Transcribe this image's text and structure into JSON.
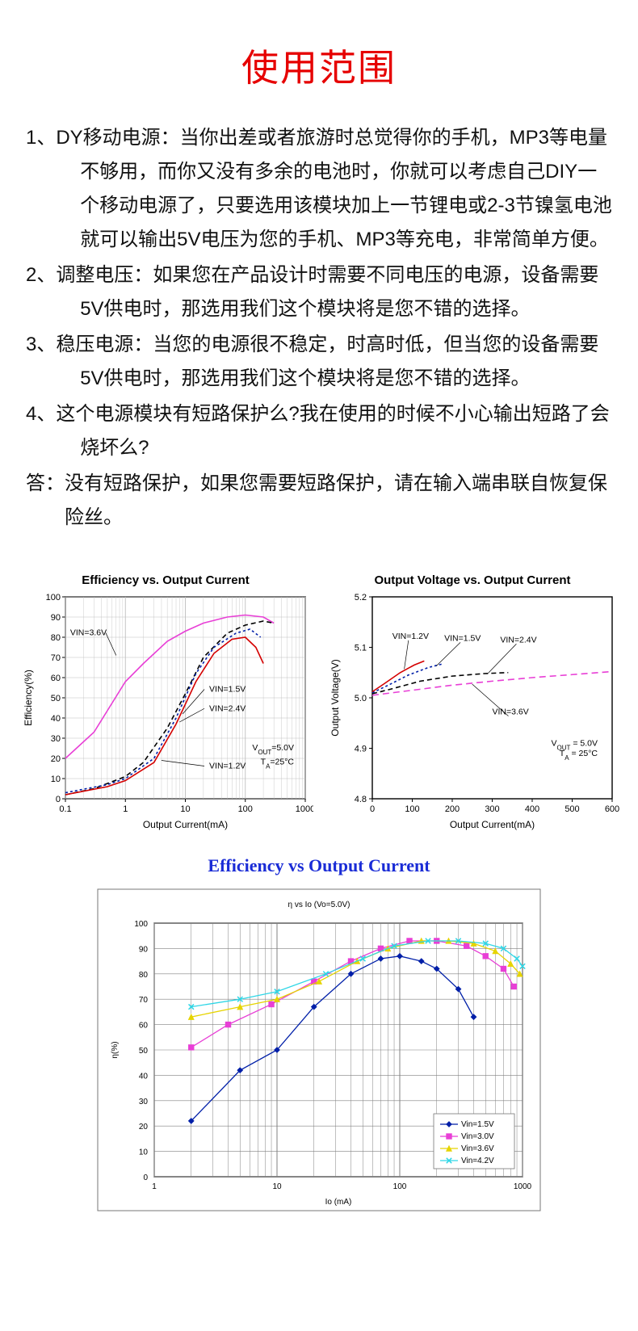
{
  "title": "使用范围",
  "paragraphs": {
    "p1": "1、DY移动电源：当你出差或者旅游时总觉得你的手机，MP3等电量不够用，而你又没有多余的电池时，你就可以考虑自己DIY一个移动电源了，只要选用该模块加上一节锂电或2-3节镍氢电池就可以输出5V电压为您的手机、MP3等充电，非常简单方便。",
    "p2": "2、调整电压：如果您在产品设计时需要不同电压的电源，设备需要5V供电时，那选用我们这个模块将是您不错的选择。",
    "p3": "3、稳压电源：当您的电源很不稳定，时高时低，但当您的设备需要5V供电时，那选用我们这个模块将是您不错的选择。",
    "p4": "4、这个电源模块有短路保护么?我在使用的时候不小心输出短路了会烧坏么?",
    "pa": "答：没有短路保护，如果您需要短路保护，请在输入端串联自恢复保险丝。"
  },
  "chart1": {
    "title": "Efficiency vs. Output Current",
    "type": "line",
    "xlabel": "Output Current(mA)",
    "ylabel": "Efficiency(%)",
    "xscale": "log",
    "xlim": [
      0.1,
      1000
    ],
    "xticks": [
      "0.1",
      "1",
      "10",
      "100",
      "1000"
    ],
    "ylim": [
      0,
      100
    ],
    "ytick_step": 10,
    "background_color": "#ffffff",
    "grid_color": "#bfbfbf",
    "border_color": "#000000",
    "annotation1": "V_OUT=5.0V",
    "annotation2": "T_A=25°C",
    "series": [
      {
        "name": "VIN=3.6V",
        "color": "#e83fd6",
        "dash": "0",
        "width": 1.6,
        "points": [
          [
            0.1,
            20
          ],
          [
            0.3,
            33
          ],
          [
            1,
            58
          ],
          [
            2,
            67
          ],
          [
            5,
            78
          ],
          [
            10,
            83
          ],
          [
            20,
            87
          ],
          [
            50,
            90
          ],
          [
            100,
            91
          ],
          [
            200,
            90
          ],
          [
            300,
            87
          ]
        ]
      },
      {
        "name": "VIN=2.4V",
        "color": "#000000",
        "dash": "6 4",
        "width": 1.6,
        "points": [
          [
            0.1,
            2
          ],
          [
            0.3,
            5
          ],
          [
            1,
            11
          ],
          [
            2,
            18
          ],
          [
            5,
            35
          ],
          [
            10,
            52
          ],
          [
            20,
            70
          ],
          [
            50,
            82
          ],
          [
            100,
            86
          ],
          [
            200,
            88
          ],
          [
            300,
            87
          ]
        ]
      },
      {
        "name": "VIN=1.5V",
        "color": "#001fa8",
        "dash": "3 3",
        "width": 1.6,
        "points": [
          [
            0.1,
            3
          ],
          [
            0.5,
            7
          ],
          [
            1,
            10
          ],
          [
            3,
            20
          ],
          [
            7,
            40
          ],
          [
            15,
            62
          ],
          [
            30,
            75
          ],
          [
            70,
            82
          ],
          [
            120,
            84
          ],
          [
            180,
            80
          ]
        ]
      },
      {
        "name": "VIN=1.2V",
        "color": "#d40000",
        "dash": "0",
        "width": 1.6,
        "points": [
          [
            0.1,
            2
          ],
          [
            0.5,
            6
          ],
          [
            1,
            9
          ],
          [
            3,
            18
          ],
          [
            7,
            37
          ],
          [
            15,
            58
          ],
          [
            30,
            72
          ],
          [
            60,
            79
          ],
          [
            100,
            80
          ],
          [
            150,
            75
          ],
          [
            200,
            67
          ]
        ]
      }
    ],
    "callouts": [
      {
        "text": "VIN=3.6V",
        "tx": 0.12,
        "ty": 81,
        "lx": 0.7,
        "ly": 71,
        "side": "left"
      },
      {
        "text": "VIN=1.5V",
        "tx": 25,
        "ty": 53,
        "lx": 9,
        "ly": 42,
        "side": "right"
      },
      {
        "text": "VIN=2.4V",
        "tx": 25,
        "ty": 43.5,
        "lx": 8,
        "ly": 38,
        "side": "right"
      },
      {
        "text": "VIN=1.2V",
        "tx": 25,
        "ty": 15,
        "lx": 4,
        "ly": 19,
        "side": "right"
      }
    ]
  },
  "chart2": {
    "title": "Output Voltage vs. Output Current",
    "type": "line",
    "xlabel": "Output Current(mA)",
    "ylabel": "Output Voltage(V)",
    "xscale": "linear",
    "xlim": [
      0,
      600
    ],
    "xticks": [
      "0",
      "100",
      "200",
      "300",
      "400",
      "500",
      "600"
    ],
    "ylim": [
      4.8,
      5.2
    ],
    "ytick_step": 0.1,
    "background_color": "#ffffff",
    "grid_color": "#bfbfbf",
    "border_color": "#000000",
    "annotation1": "V_OUT = 5.0V",
    "annotation2": "T_A  = 25°C",
    "series": [
      {
        "name": "VIN=3.6V",
        "color": "#e83fd6",
        "dash": "8 5",
        "width": 1.6,
        "points": [
          [
            0,
            5.005
          ],
          [
            100,
            5.015
          ],
          [
            200,
            5.025
          ],
          [
            300,
            5.033
          ],
          [
            400,
            5.04
          ],
          [
            500,
            5.046
          ],
          [
            600,
            5.052
          ]
        ]
      },
      {
        "name": "VIN=2.4V",
        "color": "#000000",
        "dash": "6 4",
        "width": 1.6,
        "points": [
          [
            0,
            5.008
          ],
          [
            50,
            5.018
          ],
          [
            120,
            5.033
          ],
          [
            200,
            5.043
          ],
          [
            280,
            5.048
          ],
          [
            340,
            5.05
          ]
        ]
      },
      {
        "name": "VIN=1.5V",
        "color": "#001fa8",
        "dash": "3 3",
        "width": 1.6,
        "points": [
          [
            0,
            5.01
          ],
          [
            40,
            5.025
          ],
          [
            90,
            5.045
          ],
          [
            140,
            5.06
          ],
          [
            175,
            5.067
          ]
        ]
      },
      {
        "name": "VIN=1.2V",
        "color": "#d40000",
        "dash": "0",
        "width": 1.6,
        "points": [
          [
            0,
            5.012
          ],
          [
            30,
            5.028
          ],
          [
            70,
            5.05
          ],
          [
            105,
            5.065
          ],
          [
            130,
            5.073
          ]
        ]
      }
    ],
    "callouts": [
      {
        "text": "VIN=1.2V",
        "tx": 50,
        "ty": 5.117,
        "lx": 80,
        "ly": 5.057
      },
      {
        "text": "VIN=1.5V",
        "tx": 180,
        "ty": 5.113,
        "lx": 160,
        "ly": 5.063
      },
      {
        "text": "VIN=2.4V",
        "tx": 320,
        "ty": 5.11,
        "lx": 290,
        "ly": 5.049
      },
      {
        "text": "VIN=3.6V",
        "tx": 300,
        "ty": 4.967,
        "lx": 250,
        "ly": 5.027
      }
    ]
  },
  "chart3": {
    "title": "Efficiency vs Output Current",
    "inner_title": "η  vs  Io (Vo=5.0V)",
    "type": "line",
    "xlabel": "Io (mA)",
    "ylabel": "η(%)",
    "xscale": "log",
    "xlim": [
      1,
      1000
    ],
    "xticks": [
      "1",
      "10",
      "100",
      "1000"
    ],
    "ylim": [
      0,
      100
    ],
    "ytick_step": 10,
    "background_color": "#ffffff",
    "grid_color": "#808080",
    "border_color": "#000000",
    "marker_size": 3.2,
    "legend_items": [
      {
        "label": "Vin=1.5V",
        "color": "#001fa8",
        "marker": "diamond"
      },
      {
        "label": "Vin=3.0V",
        "color": "#e83fd6",
        "marker": "square"
      },
      {
        "label": "Vin=3.6V",
        "color": "#e6d400",
        "marker": "triangle"
      },
      {
        "label": "Vin=4.2V",
        "color": "#2fd6e6",
        "marker": "x"
      }
    ],
    "series": [
      {
        "name": "Vin=1.5V",
        "color": "#001fa8",
        "marker": "diamond",
        "points": [
          [
            2,
            22
          ],
          [
            5,
            42
          ],
          [
            10,
            50
          ],
          [
            20,
            67
          ],
          [
            40,
            80
          ],
          [
            70,
            86
          ],
          [
            100,
            87
          ],
          [
            150,
            85
          ],
          [
            200,
            82
          ],
          [
            300,
            74
          ],
          [
            400,
            63
          ]
        ]
      },
      {
        "name": "Vin=3.0V",
        "color": "#e83fd6",
        "marker": "square",
        "points": [
          [
            2,
            51
          ],
          [
            4,
            60
          ],
          [
            9,
            68
          ],
          [
            20,
            77
          ],
          [
            40,
            85
          ],
          [
            70,
            90
          ],
          [
            120,
            93
          ],
          [
            200,
            93
          ],
          [
            350,
            91
          ],
          [
            500,
            87
          ],
          [
            700,
            82
          ],
          [
            850,
            75
          ]
        ]
      },
      {
        "name": "Vin=3.6V",
        "color": "#e6d400",
        "marker": "triangle",
        "points": [
          [
            2,
            63
          ],
          [
            5,
            67
          ],
          [
            10,
            70
          ],
          [
            22,
            77
          ],
          [
            45,
            85
          ],
          [
            80,
            90
          ],
          [
            150,
            93
          ],
          [
            250,
            93
          ],
          [
            400,
            92
          ],
          [
            600,
            89
          ],
          [
            800,
            84
          ],
          [
            950,
            80
          ]
        ]
      },
      {
        "name": "Vin=4.2V",
        "color": "#2fd6e6",
        "marker": "x",
        "points": [
          [
            2,
            67
          ],
          [
            5,
            70
          ],
          [
            10,
            73
          ],
          [
            25,
            80
          ],
          [
            50,
            86
          ],
          [
            90,
            91
          ],
          [
            170,
            93
          ],
          [
            300,
            93
          ],
          [
            500,
            92
          ],
          [
            700,
            90
          ],
          [
            900,
            86
          ],
          [
            1000,
            83
          ]
        ]
      }
    ]
  }
}
